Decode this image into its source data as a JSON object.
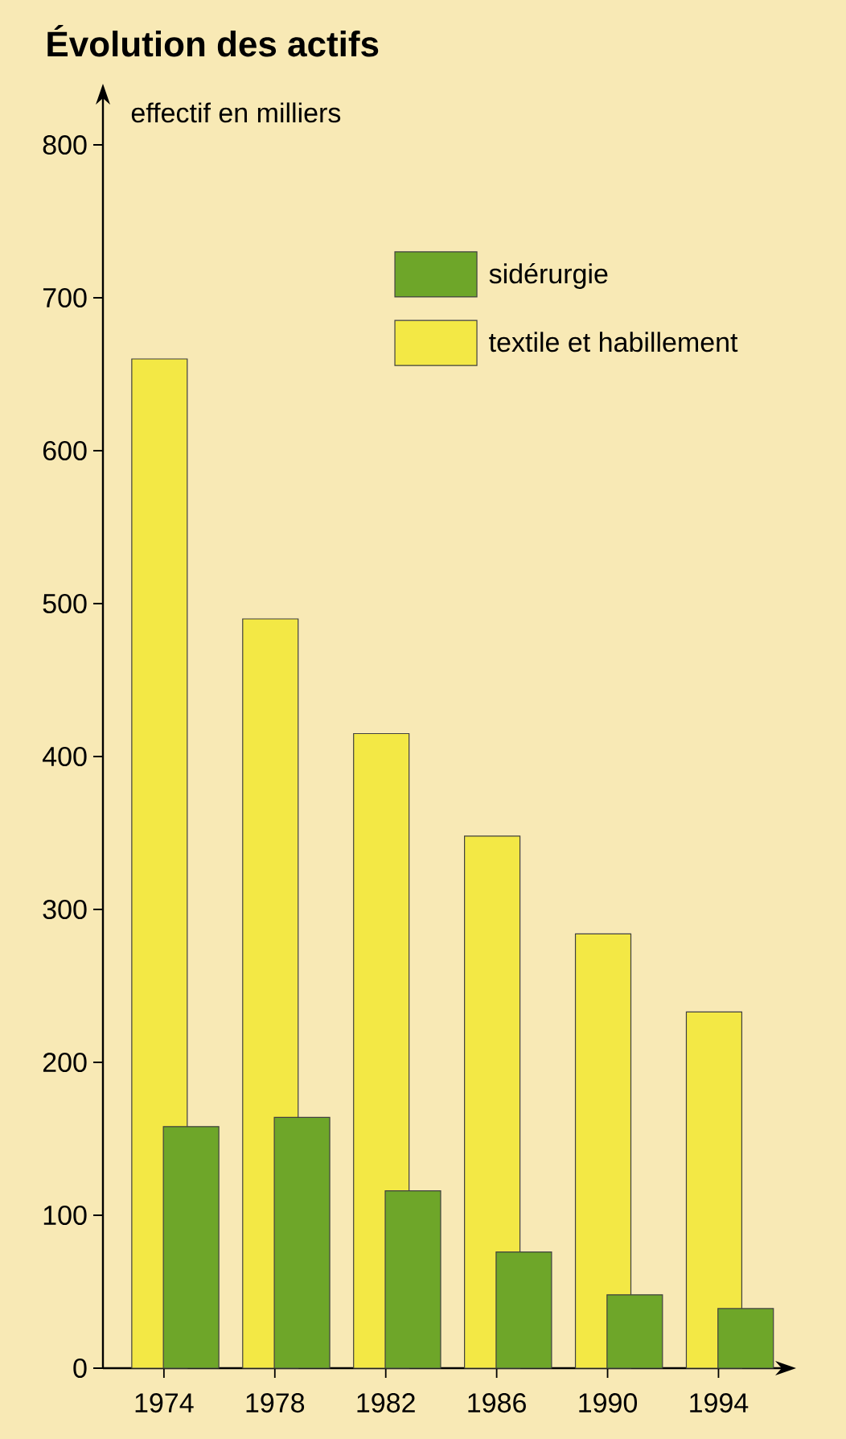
{
  "chart_data": {
    "type": "bar",
    "title": "Évolution des actifs",
    "ylabel": "effectif en milliers",
    "categories": [
      "1974",
      "1978",
      "1982",
      "1986",
      "1990",
      "1994"
    ],
    "series": [
      {
        "name": "textile et habillement",
        "color": "#f3e845",
        "values": [
          660,
          490,
          415,
          348,
          284,
          233
        ]
      },
      {
        "name": "sidérurgie",
        "color": "#6ea629",
        "values": [
          158,
          164,
          116,
          76,
          48,
          39
        ]
      }
    ],
    "ylim": [
      0,
      840
    ],
    "yticks": [
      0,
      100,
      200,
      300,
      400,
      500,
      600,
      700,
      800
    ],
    "legend": "top right"
  }
}
